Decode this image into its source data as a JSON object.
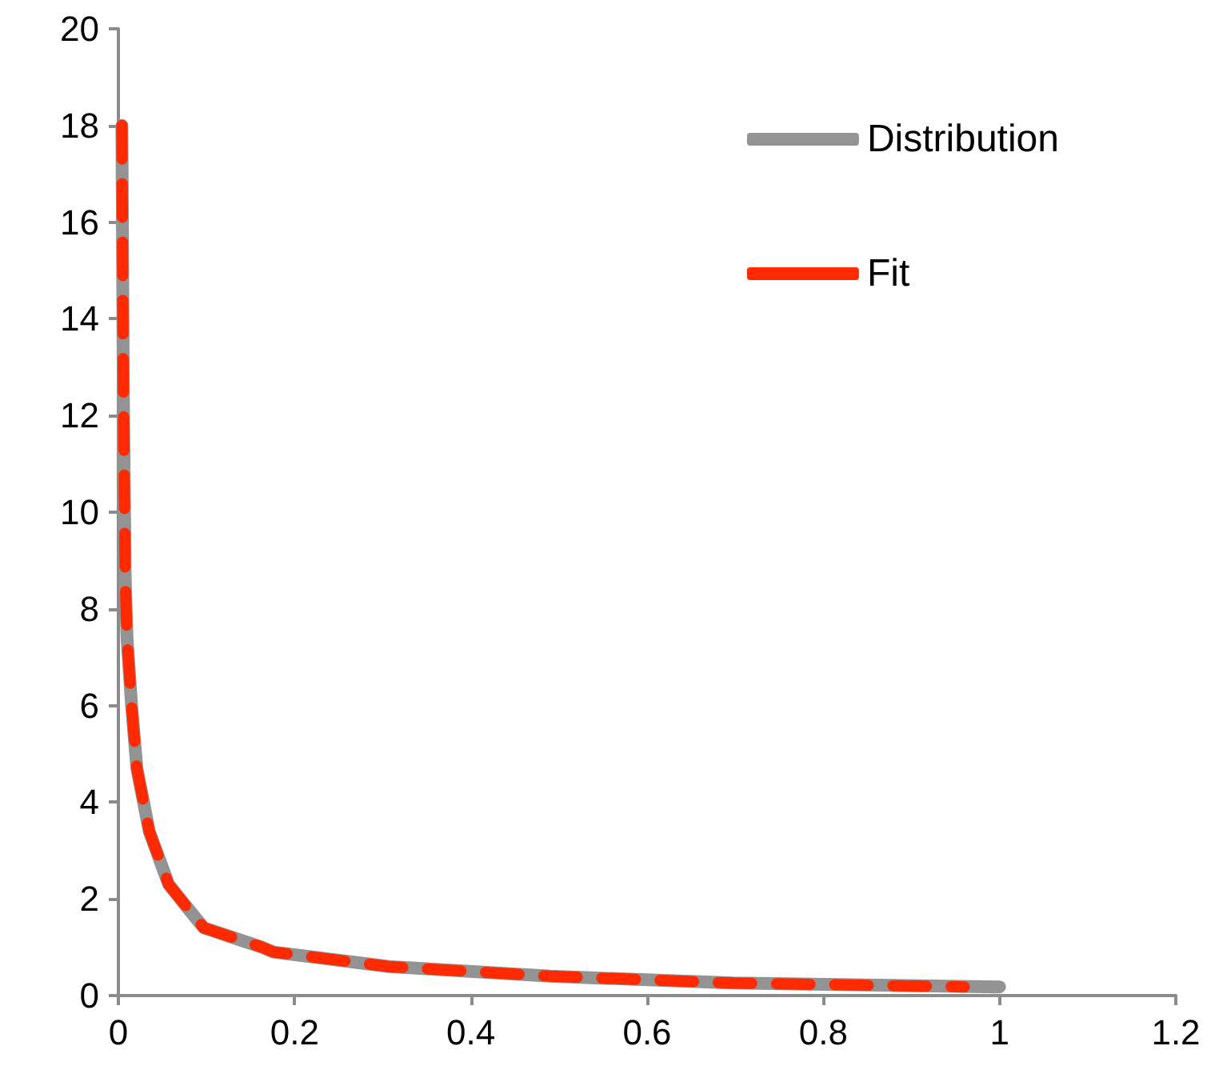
{
  "chart_data": {
    "type": "line",
    "xlim": [
      0,
      1.2
    ],
    "xticks": [
      0,
      0.2,
      0.4,
      0.6,
      0.8,
      1,
      1.2
    ],
    "ylim": [
      0,
      20
    ],
    "yticks": [
      0,
      2,
      4,
      6,
      8,
      10,
      12,
      14,
      16,
      18,
      20
    ],
    "grid": false,
    "legend": "top right",
    "marker": "none",
    "series": [
      {
        "name": "Distribution",
        "color": "#939393",
        "line_style": "solid",
        "x": [
          0.004,
          0.0055,
          0.0077,
          0.0098,
          0.015,
          0.021,
          0.035,
          0.057,
          0.079,
          0.097,
          0.163,
          0.176,
          0.307,
          0.49,
          0.697,
          1.0
        ],
        "values": [
          18,
          12.8,
          8.7,
          7.4,
          6.0,
          4.7,
          3.4,
          2.3,
          1.8,
          1.4,
          1.0,
          0.9,
          0.6,
          0.4,
          0.26,
          0.18
        ]
      },
      {
        "name": "Fit",
        "color": "#ff2a00",
        "line_style": "dashed",
        "x": [
          0.004,
          0.0055,
          0.0077,
          0.0098,
          0.015,
          0.021,
          0.035,
          0.057,
          0.079,
          0.097,
          0.163,
          0.176,
          0.307,
          0.49,
          0.697,
          0.96
        ],
        "values": [
          18,
          12.8,
          8.7,
          7.4,
          6.0,
          4.7,
          3.4,
          2.3,
          1.8,
          1.4,
          1.0,
          0.9,
          0.6,
          0.4,
          0.26,
          0.18
        ]
      }
    ]
  }
}
